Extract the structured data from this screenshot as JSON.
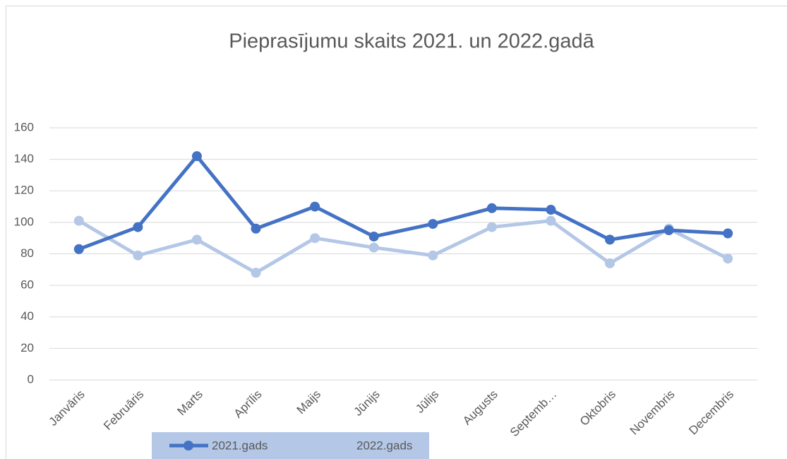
{
  "chart_data": {
    "type": "line",
    "title": "Pieprasījumu skaits 2021. un 2022.gadā",
    "categories": [
      "Janvāris",
      "Februāris",
      "Marts",
      "Aprīlis",
      "Maijs",
      "Jūnijs",
      "Jūlijs",
      "Augusts",
      "Septemb…",
      "Oktobris",
      "Novembris",
      "Decembris"
    ],
    "series": [
      {
        "name": "2021.gads",
        "color": "#4472c4",
        "values": [
          83,
          97,
          142,
          96,
          110,
          91,
          99,
          109,
          108,
          89,
          95,
          93
        ]
      },
      {
        "name": "2022.gads",
        "color": "#b4c7e7",
        "values": [
          101,
          79,
          89,
          68,
          90,
          84,
          79,
          97,
          101,
          74,
          96,
          77
        ]
      }
    ],
    "ylim": [
      0,
      160
    ],
    "yticks": [
      0,
      20,
      40,
      60,
      80,
      100,
      120,
      140,
      160
    ],
    "grid": true,
    "legend": "bottom"
  }
}
